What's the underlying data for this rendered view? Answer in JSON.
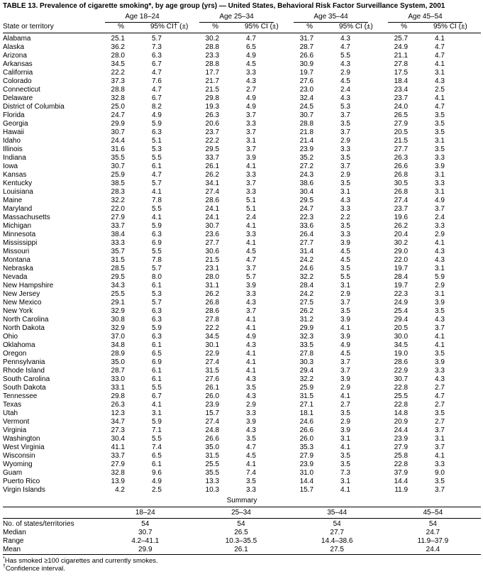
{
  "title": "TABLE 13. Prevalence of cigarette smoking*, by age group (yrs) — United States, Behavioral Risk Factor Surveillance System, 2001",
  "table": {
    "state_header": "State or territory",
    "group_headers": [
      "Age 18–24",
      "Age 25–34",
      "Age 35–44",
      "Age 45–54"
    ],
    "pct_label": "%",
    "ci_labels": [
      "95% CI† (±)",
      "95% CI (±)",
      "95% CI (±)",
      "95% CI (±)"
    ],
    "rows": [
      {
        "state": "Alabama",
        "values": [
          "25.1",
          "5.7",
          "30.2",
          "4.7",
          "31.7",
          "4.3",
          "25.7",
          "4.1"
        ]
      },
      {
        "state": "Alaska",
        "values": [
          "36.2",
          "7.3",
          "28.8",
          "6.5",
          "28.7",
          "4.7",
          "24.9",
          "4.7"
        ]
      },
      {
        "state": "Arizona",
        "values": [
          "28.0",
          "6.3",
          "23.3",
          "4.9",
          "26.6",
          "5.5",
          "21.1",
          "4.7"
        ]
      },
      {
        "state": "Arkansas",
        "values": [
          "34.5",
          "6.7",
          "28.8",
          "4.5",
          "30.9",
          "4.3",
          "27.8",
          "4.1"
        ]
      },
      {
        "state": "California",
        "values": [
          "22.2",
          "4.7",
          "17.7",
          "3.3",
          "19.7",
          "2.9",
          "17.5",
          "3.1"
        ]
      },
      {
        "state": "Colorado",
        "values": [
          "37.3",
          "7.6",
          "21.7",
          "4.3",
          "27.6",
          "4.5",
          "18.4",
          "4.3"
        ]
      },
      {
        "state": "Connecticut",
        "values": [
          "28.8",
          "4.7",
          "21.5",
          "2.7",
          "23.0",
          "2.4",
          "23.4",
          "2.5"
        ]
      },
      {
        "state": "Delaware",
        "values": [
          "32.8",
          "6.7",
          "29.8",
          "4.9",
          "32.4",
          "4.3",
          "23.7",
          "4.1"
        ]
      },
      {
        "state": "District of Columbia",
        "values": [
          "25.0",
          "8.2",
          "19.3",
          "4.9",
          "24.5",
          "5.3",
          "24.0",
          "4.7"
        ]
      },
      {
        "state": "Florida",
        "values": [
          "24.7",
          "4.9",
          "26.3",
          "3.7",
          "30.7",
          "3.7",
          "26.5",
          "3.5"
        ]
      },
      {
        "state": "Georgia",
        "values": [
          "29.9",
          "5.9",
          "20.6",
          "3.3",
          "28.8",
          "3.5",
          "27.9",
          "3.5"
        ]
      },
      {
        "state": "Hawaii",
        "values": [
          "30.7",
          "6.3",
          "23.7",
          "3.7",
          "21.8",
          "3.7",
          "20.5",
          "3.5"
        ]
      },
      {
        "state": "Idaho",
        "values": [
          "24.4",
          "5.1",
          "22.2",
          "3.1",
          "21.4",
          "2.9",
          "21.5",
          "3.1"
        ]
      },
      {
        "state": "Illinois",
        "values": [
          "31.6",
          "5.3",
          "29.5",
          "3.7",
          "23.9",
          "3.3",
          "27.7",
          "3.5"
        ]
      },
      {
        "state": "Indiana",
        "values": [
          "35.5",
          "5.5",
          "33.7",
          "3.9",
          "35.2",
          "3.5",
          "26.3",
          "3.3"
        ]
      },
      {
        "state": "Iowa",
        "values": [
          "30.7",
          "6.1",
          "26.1",
          "4.1",
          "27.2",
          "3.7",
          "26.6",
          "3.9"
        ]
      },
      {
        "state": "Kansas",
        "values": [
          "25.9",
          "4.7",
          "26.2",
          "3.3",
          "24.3",
          "2.9",
          "26.8",
          "3.1"
        ]
      },
      {
        "state": "Kentucky",
        "values": [
          "38.5",
          "5.7",
          "34.1",
          "3.7",
          "38.6",
          "3.5",
          "30.5",
          "3.3"
        ]
      },
      {
        "state": "Louisiana",
        "values": [
          "28.3",
          "4.1",
          "27.4",
          "3.3",
          "30.4",
          "3.1",
          "26.8",
          "3.1"
        ]
      },
      {
        "state": "Maine",
        "values": [
          "32.2",
          "7.8",
          "28.6",
          "5.1",
          "29.5",
          "4.3",
          "27.4",
          "4.9"
        ]
      },
      {
        "state": "Maryland",
        "values": [
          "22.0",
          "5.5",
          "24.1",
          "5.1",
          "24.7",
          "3.3",
          "23.7",
          "3.7"
        ]
      },
      {
        "state": "Massachusetts",
        "values": [
          "27.9",
          "4.1",
          "24.1",
          "2.4",
          "22.3",
          "2.2",
          "19.6",
          "2.4"
        ]
      },
      {
        "state": "Michigan",
        "values": [
          "33.7",
          "5.9",
          "30.7",
          "4.1",
          "33.6",
          "3.5",
          "26.2",
          "3.3"
        ]
      },
      {
        "state": "Minnesota",
        "values": [
          "38.4",
          "6.3",
          "23.6",
          "3.3",
          "26.4",
          "3.3",
          "20.4",
          "2.9"
        ]
      },
      {
        "state": "Mississippi",
        "values": [
          "33.3",
          "6.9",
          "27.7",
          "4.1",
          "27.7",
          "3.9",
          "30.2",
          "4.1"
        ]
      },
      {
        "state": "Missouri",
        "values": [
          "35.7",
          "5.5",
          "30.6",
          "4.5",
          "31.4",
          "4.5",
          "29.0",
          "4.3"
        ]
      },
      {
        "state": "Montana",
        "values": [
          "31.5",
          "7.8",
          "21.5",
          "4.7",
          "24.2",
          "4.5",
          "22.0",
          "4.3"
        ]
      },
      {
        "state": "Nebraska",
        "values": [
          "28.5",
          "5.7",
          "23.1",
          "3.7",
          "24.6",
          "3.5",
          "19.7",
          "3.1"
        ]
      },
      {
        "state": "Nevada",
        "values": [
          "29.5",
          "8.0",
          "28.0",
          "5.7",
          "32.2",
          "5.5",
          "28.4",
          "5.9"
        ]
      },
      {
        "state": "New Hampshire",
        "values": [
          "34.3",
          "6.1",
          "31.1",
          "3.9",
          "28.4",
          "3.1",
          "19.7",
          "2.9"
        ]
      },
      {
        "state": "New Jersey",
        "values": [
          "25.5",
          "5.3",
          "26.2",
          "3.3",
          "24.2",
          "2.9",
          "22.3",
          "3.1"
        ]
      },
      {
        "state": "New Mexico",
        "values": [
          "29.1",
          "5.7",
          "26.8",
          "4.3",
          "27.5",
          "3.7",
          "24.9",
          "3.9"
        ]
      },
      {
        "state": "New York",
        "values": [
          "32.9",
          "6.3",
          "28.6",
          "3.7",
          "26.2",
          "3.5",
          "25.4",
          "3.5"
        ]
      },
      {
        "state": "North Carolina",
        "values": [
          "30.8",
          "6.3",
          "27.8",
          "4.1",
          "31.2",
          "3.9",
          "29.4",
          "4.3"
        ]
      },
      {
        "state": "North Dakota",
        "values": [
          "32.9",
          "5.9",
          "22.2",
          "4.1",
          "29.9",
          "4.1",
          "20.5",
          "3.7"
        ]
      },
      {
        "state": "Ohio",
        "values": [
          "37.0",
          "6.3",
          "34.5",
          "4.9",
          "32.3",
          "3.9",
          "30.0",
          "4.1"
        ]
      },
      {
        "state": "Oklahoma",
        "values": [
          "34.8",
          "6.1",
          "30.1",
          "4.3",
          "33.5",
          "4.9",
          "34.5",
          "4.1"
        ]
      },
      {
        "state": "Oregon",
        "values": [
          "28.9",
          "6.5",
          "22.9",
          "4.1",
          "27.8",
          "4.5",
          "19.0",
          "3.5"
        ]
      },
      {
        "state": "Pennsylvania",
        "values": [
          "35.0",
          "6.9",
          "27.4",
          "4.1",
          "30.3",
          "3.7",
          "28.6",
          "3.9"
        ]
      },
      {
        "state": "Rhode Island",
        "values": [
          "28.7",
          "6.1",
          "31.5",
          "4.1",
          "29.4",
          "3.7",
          "22.9",
          "3.3"
        ]
      },
      {
        "state": "South Carolina",
        "values": [
          "33.0",
          "6.1",
          "27.6",
          "4.3",
          "32.2",
          "3.9",
          "30.7",
          "4.3"
        ]
      },
      {
        "state": "South Dakota",
        "values": [
          "33.1",
          "5.5",
          "26.1",
          "3.5",
          "25.9",
          "2.9",
          "22.8",
          "2.7"
        ]
      },
      {
        "state": "Tennessee",
        "values": [
          "29.8",
          "6.7",
          "26.0",
          "4.3",
          "31.5",
          "4.1",
          "25.5",
          "4.7"
        ]
      },
      {
        "state": "Texas",
        "values": [
          "26.3",
          "4.1",
          "23.9",
          "2.9",
          "27.1",
          "2.7",
          "22.8",
          "2.7"
        ]
      },
      {
        "state": "Utah",
        "values": [
          "12.3",
          "3.1",
          "15.7",
          "3.3",
          "18.1",
          "3.5",
          "14.8",
          "3.5"
        ]
      },
      {
        "state": "Vermont",
        "values": [
          "34.7",
          "5.9",
          "27.4",
          "3.9",
          "24.6",
          "2.9",
          "20.9",
          "2.7"
        ]
      },
      {
        "state": "Virginia",
        "values": [
          "27.3",
          "7.1",
          "24.8",
          "4.3",
          "26.6",
          "3.9",
          "24.4",
          "3.7"
        ]
      },
      {
        "state": "Washington",
        "values": [
          "30.4",
          "5.5",
          "26.6",
          "3.5",
          "26.0",
          "3.1",
          "23.9",
          "3.1"
        ]
      },
      {
        "state": "West Virginia",
        "values": [
          "41.1",
          "7.4",
          "35.0",
          "4.7",
          "35.3",
          "4.1",
          "27.9",
          "3.7"
        ]
      },
      {
        "state": "Wisconsin",
        "values": [
          "33.7",
          "6.5",
          "31.5",
          "4.5",
          "27.9",
          "3.5",
          "25.8",
          "4.1"
        ]
      },
      {
        "state": "Wyoming",
        "values": [
          "27.9",
          "6.1",
          "25.5",
          "4.1",
          "23.9",
          "3.5",
          "22.8",
          "3.3"
        ]
      },
      {
        "state": "Guam",
        "values": [
          "32.8",
          "9.6",
          "35.5",
          "7.4",
          "31.0",
          "7.3",
          "37.9",
          "9.0"
        ]
      },
      {
        "state": "Puerto Rico",
        "values": [
          "13.9",
          "4.9",
          "13.3",
          "3.5",
          "14.4",
          "3.1",
          "14.4",
          "3.5"
        ]
      },
      {
        "state": "Virgin Islands",
        "values": [
          "4.2",
          "2.5",
          "10.3",
          "3.3",
          "15.7",
          "4.1",
          "11.9",
          "3.7"
        ]
      }
    ]
  },
  "summary": {
    "title": "Summary",
    "headers": [
      "18–24",
      "25–34",
      "35–44",
      "45–54"
    ],
    "rows": [
      {
        "label": "No. of states/territories",
        "values": [
          "54",
          "54",
          "54",
          "54"
        ]
      },
      {
        "label": "Median",
        "values": [
          "30.7",
          "26.5",
          "27.7",
          "24.7"
        ]
      },
      {
        "label": "Range",
        "values": [
          "4.2–41.1",
          "10.3–35.5",
          "14.4–38.6",
          "11.9–37.9"
        ]
      },
      {
        "label": "Mean",
        "values": [
          "29.9",
          "26.1",
          "27.5",
          "24.4"
        ]
      }
    ]
  },
  "footnotes": [
    {
      "marker": "*",
      "text": "Has smoked ≥100 cigarettes and currently smokes."
    },
    {
      "marker": "†",
      "text": "Confidence interval."
    }
  ]
}
